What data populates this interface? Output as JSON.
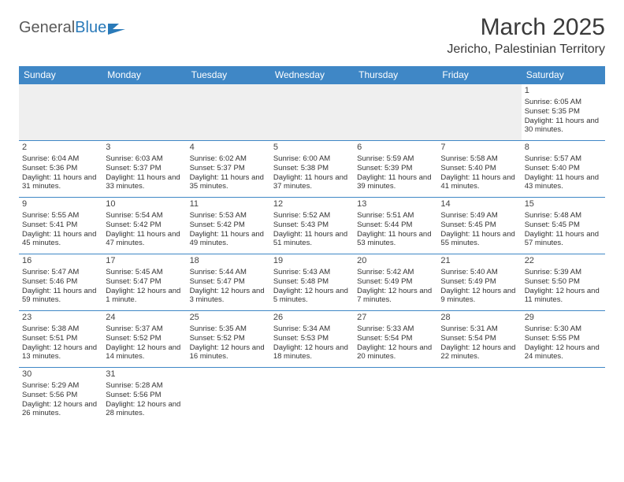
{
  "logo": {
    "text1": "General",
    "text2": "Blue"
  },
  "title": "March 2025",
  "location": "Jericho, Palestinian Territory",
  "colors": {
    "header_bg": "#3f87c6",
    "header_text": "#ffffff",
    "cell_border": "#3f87c6",
    "empty_bg": "#efefef",
    "text": "#333333",
    "logo_gray": "#5a5a5a",
    "logo_blue": "#2a7ab9"
  },
  "day_headers": [
    "Sunday",
    "Monday",
    "Tuesday",
    "Wednesday",
    "Thursday",
    "Friday",
    "Saturday"
  ],
  "weeks": [
    [
      null,
      null,
      null,
      null,
      null,
      null,
      {
        "d": "1",
        "sr": "6:05 AM",
        "ss": "5:35 PM",
        "dl": "11 hours and 30 minutes."
      }
    ],
    [
      {
        "d": "2",
        "sr": "6:04 AM",
        "ss": "5:36 PM",
        "dl": "11 hours and 31 minutes."
      },
      {
        "d": "3",
        "sr": "6:03 AM",
        "ss": "5:37 PM",
        "dl": "11 hours and 33 minutes."
      },
      {
        "d": "4",
        "sr": "6:02 AM",
        "ss": "5:37 PM",
        "dl": "11 hours and 35 minutes."
      },
      {
        "d": "5",
        "sr": "6:00 AM",
        "ss": "5:38 PM",
        "dl": "11 hours and 37 minutes."
      },
      {
        "d": "6",
        "sr": "5:59 AM",
        "ss": "5:39 PM",
        "dl": "11 hours and 39 minutes."
      },
      {
        "d": "7",
        "sr": "5:58 AM",
        "ss": "5:40 PM",
        "dl": "11 hours and 41 minutes."
      },
      {
        "d": "8",
        "sr": "5:57 AM",
        "ss": "5:40 PM",
        "dl": "11 hours and 43 minutes."
      }
    ],
    [
      {
        "d": "9",
        "sr": "5:55 AM",
        "ss": "5:41 PM",
        "dl": "11 hours and 45 minutes."
      },
      {
        "d": "10",
        "sr": "5:54 AM",
        "ss": "5:42 PM",
        "dl": "11 hours and 47 minutes."
      },
      {
        "d": "11",
        "sr": "5:53 AM",
        "ss": "5:42 PM",
        "dl": "11 hours and 49 minutes."
      },
      {
        "d": "12",
        "sr": "5:52 AM",
        "ss": "5:43 PM",
        "dl": "11 hours and 51 minutes."
      },
      {
        "d": "13",
        "sr": "5:51 AM",
        "ss": "5:44 PM",
        "dl": "11 hours and 53 minutes."
      },
      {
        "d": "14",
        "sr": "5:49 AM",
        "ss": "5:45 PM",
        "dl": "11 hours and 55 minutes."
      },
      {
        "d": "15",
        "sr": "5:48 AM",
        "ss": "5:45 PM",
        "dl": "11 hours and 57 minutes."
      }
    ],
    [
      {
        "d": "16",
        "sr": "5:47 AM",
        "ss": "5:46 PM",
        "dl": "11 hours and 59 minutes."
      },
      {
        "d": "17",
        "sr": "5:45 AM",
        "ss": "5:47 PM",
        "dl": "12 hours and 1 minute."
      },
      {
        "d": "18",
        "sr": "5:44 AM",
        "ss": "5:47 PM",
        "dl": "12 hours and 3 minutes."
      },
      {
        "d": "19",
        "sr": "5:43 AM",
        "ss": "5:48 PM",
        "dl": "12 hours and 5 minutes."
      },
      {
        "d": "20",
        "sr": "5:42 AM",
        "ss": "5:49 PM",
        "dl": "12 hours and 7 minutes."
      },
      {
        "d": "21",
        "sr": "5:40 AM",
        "ss": "5:49 PM",
        "dl": "12 hours and 9 minutes."
      },
      {
        "d": "22",
        "sr": "5:39 AM",
        "ss": "5:50 PM",
        "dl": "12 hours and 11 minutes."
      }
    ],
    [
      {
        "d": "23",
        "sr": "5:38 AM",
        "ss": "5:51 PM",
        "dl": "12 hours and 13 minutes."
      },
      {
        "d": "24",
        "sr": "5:37 AM",
        "ss": "5:52 PM",
        "dl": "12 hours and 14 minutes."
      },
      {
        "d": "25",
        "sr": "5:35 AM",
        "ss": "5:52 PM",
        "dl": "12 hours and 16 minutes."
      },
      {
        "d": "26",
        "sr": "5:34 AM",
        "ss": "5:53 PM",
        "dl": "12 hours and 18 minutes."
      },
      {
        "d": "27",
        "sr": "5:33 AM",
        "ss": "5:54 PM",
        "dl": "12 hours and 20 minutes."
      },
      {
        "d": "28",
        "sr": "5:31 AM",
        "ss": "5:54 PM",
        "dl": "12 hours and 22 minutes."
      },
      {
        "d": "29",
        "sr": "5:30 AM",
        "ss": "5:55 PM",
        "dl": "12 hours and 24 minutes."
      }
    ],
    [
      {
        "d": "30",
        "sr": "5:29 AM",
        "ss": "5:56 PM",
        "dl": "12 hours and 26 minutes."
      },
      {
        "d": "31",
        "sr": "5:28 AM",
        "ss": "5:56 PM",
        "dl": "12 hours and 28 minutes."
      },
      null,
      null,
      null,
      null,
      null
    ]
  ],
  "labels": {
    "sunrise": "Sunrise:",
    "sunset": "Sunset:",
    "daylight": "Daylight:"
  }
}
